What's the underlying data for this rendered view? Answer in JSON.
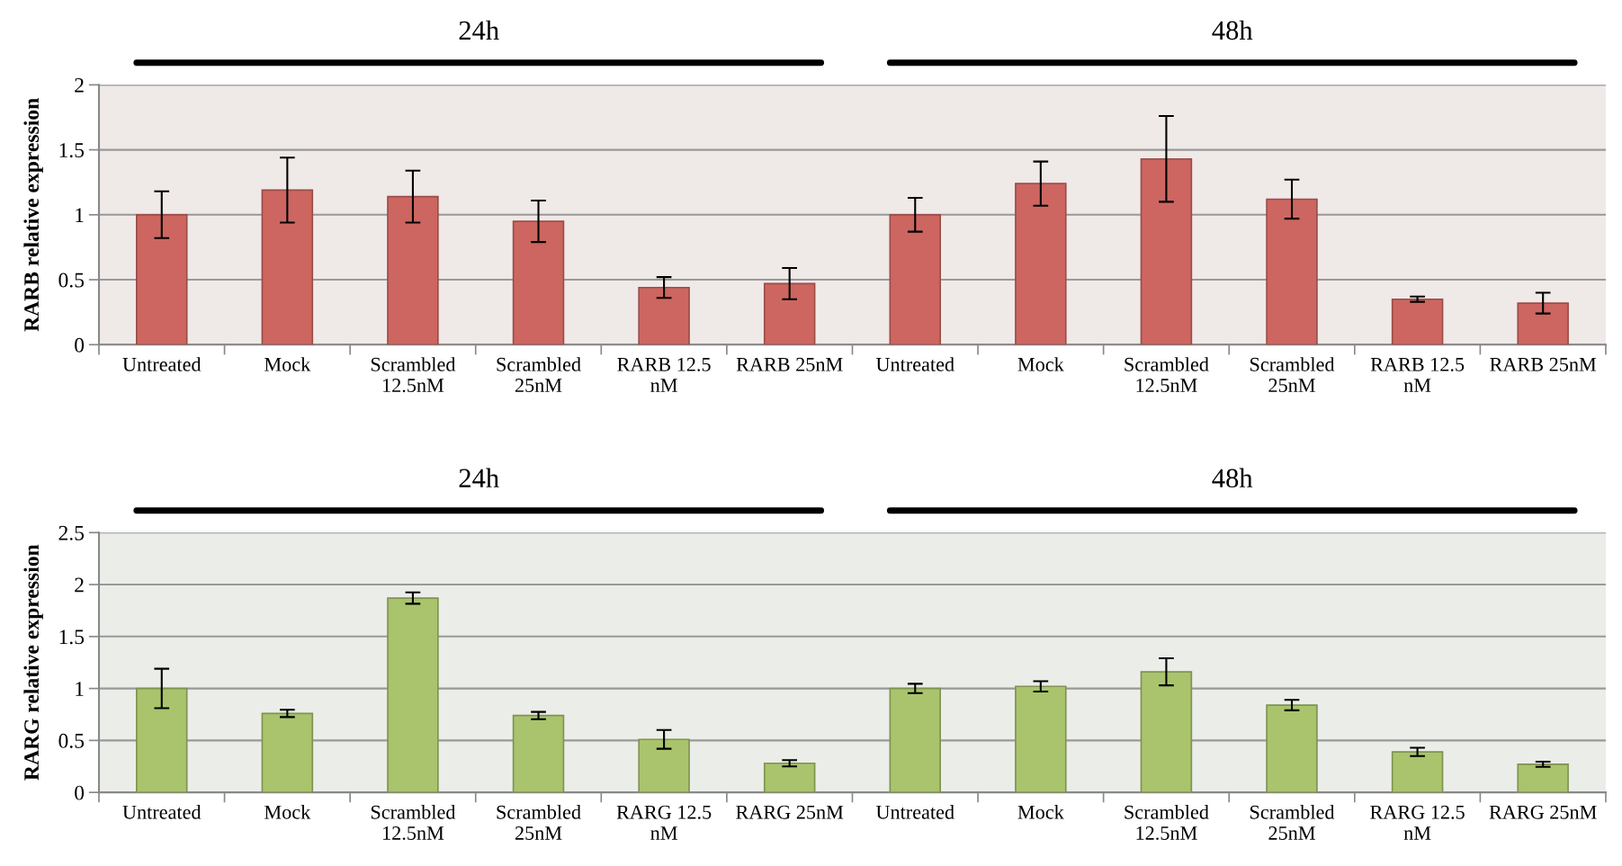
{
  "chart_data": [
    {
      "type": "bar",
      "ylabel": "RARB relative expression",
      "annotations": [
        "24h",
        "48h"
      ],
      "categories": [
        "Untreated",
        "Mock",
        "Scrambled\n12.5nM",
        "Scrambled\n25nM",
        "RARB 12.5\nnM",
        "RARB 25nM",
        "Untreated",
        "Mock",
        "Scrambled\n12.5nM",
        "Scrambled\n25nM",
        "RARB 12.5\nnM",
        "RARB 25nM"
      ],
      "series": [
        {
          "color": "#cd6660",
          "values": [
            1.0,
            1.19,
            1.14,
            0.95,
            0.44,
            0.47,
            1.0,
            1.24,
            1.43,
            1.12,
            0.35,
            0.32
          ],
          "errors": [
            0.18,
            0.25,
            0.2,
            0.16,
            0.08,
            0.12,
            0.13,
            0.17,
            0.33,
            0.15,
            0.02,
            0.08
          ]
        }
      ],
      "ylim": [
        0,
        2
      ],
      "yticks": [
        0,
        0.5,
        1,
        1.5,
        2
      ],
      "grid": "y",
      "legend": false
    },
    {
      "type": "bar",
      "ylabel": "RARG relative expression",
      "annotations": [
        "24h",
        "48h"
      ],
      "categories": [
        "Untreated",
        "Mock",
        "Scrambled\n12.5nM",
        "Scrambled\n25nM",
        "RARG 12.5\nnM",
        "RARG 25nM",
        "Untreated",
        "Mock",
        "Scrambled\n12.5nM",
        "Scrambled\n25nM",
        "RARG 12.5\nnM",
        "RARG 25nM"
      ],
      "series": [
        {
          "color": "#a9c46c",
          "values": [
            1.0,
            0.76,
            1.87,
            0.74,
            0.51,
            0.28,
            1.0,
            1.02,
            1.16,
            0.84,
            0.39,
            0.27
          ],
          "errors": [
            0.19,
            0.035,
            0.055,
            0.035,
            0.09,
            0.03,
            0.045,
            0.05,
            0.13,
            0.05,
            0.04,
            0.025
          ]
        }
      ],
      "ylim": [
        0,
        2.5
      ],
      "yticks": [
        0,
        0.5,
        1,
        1.5,
        2,
        2.5
      ],
      "grid": "y",
      "legend": false
    }
  ]
}
